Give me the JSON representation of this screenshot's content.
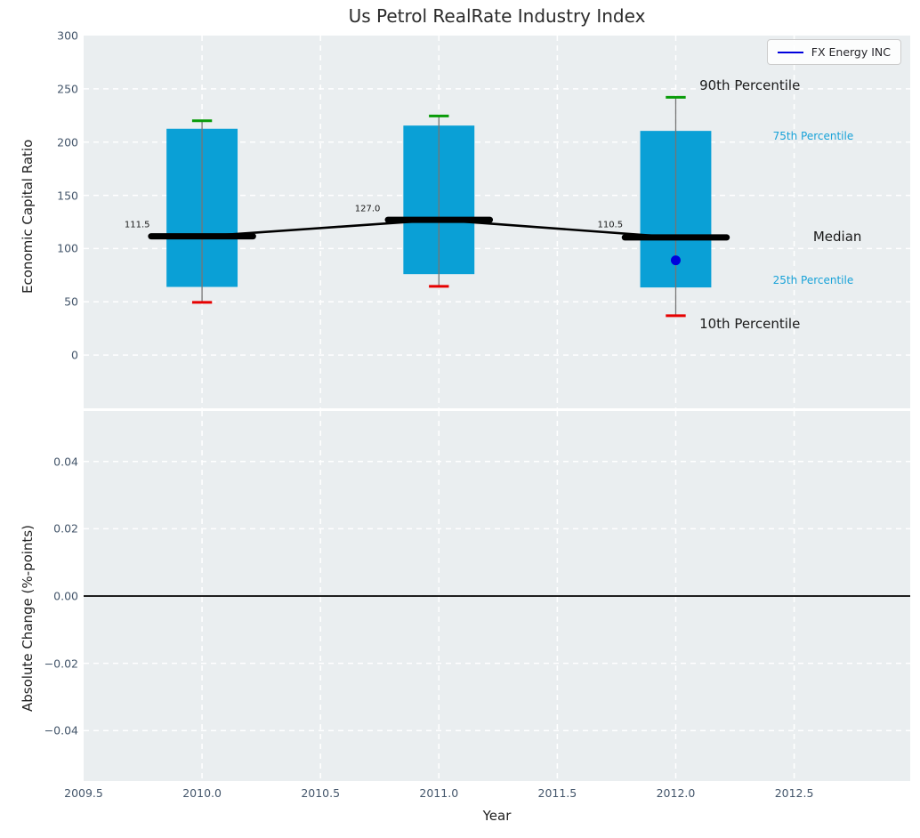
{
  "title": "Us Petrol RealRate Industry Index",
  "legend": {
    "label": "FX Energy INC",
    "line_color": "#0000dd"
  },
  "chart_data": {
    "type": "boxplot",
    "title": "Us Petrol RealRate Industry Index",
    "xlabel": "Year",
    "grid": "on",
    "legend_position": "upper right",
    "xlim": [
      2009.5,
      2012.99
    ],
    "xticks": {
      "values": [
        2009.5,
        2010.0,
        2010.5,
        2011.0,
        2011.5,
        2012.0,
        2012.5
      ],
      "labels": [
        "2009.5",
        "2010.0",
        "2010.5",
        "2011.0",
        "2011.5",
        "2012.0",
        "2012.5"
      ]
    },
    "top_panel": {
      "ylabel": "Economic Capital Ratio",
      "ylim": [
        -50,
        300
      ],
      "ytick_values": [
        300,
        250,
        200,
        150,
        100,
        50,
        0
      ],
      "ytick_labels": [
        "300",
        "250",
        "200",
        "150",
        "100",
        "50",
        "0"
      ],
      "grid_values": [
        250,
        200,
        150,
        100,
        50,
        0
      ],
      "boxes": [
        {
          "year": 2010,
          "p10": 49.5,
          "q25": 64,
          "median": 111.5,
          "q75": 212.5,
          "p90": 220
        },
        {
          "year": 2011,
          "p10": 64.5,
          "q25": 76,
          "median": 127.0,
          "q75": 215.5,
          "p90": 224.5
        },
        {
          "year": 2012,
          "p10": 37,
          "q25": 63.5,
          "median": 110.5,
          "q75": 210.5,
          "p90": 242
        }
      ],
      "box_width_years": 0.3,
      "median_segment_halfwidth_years": 0.215,
      "cap_halfwidth_years": 0.042,
      "marker_point": {
        "x": 2012,
        "y": 89
      },
      "annotations": [
        {
          "text": "111.5",
          "x": 2009.78,
          "y": 122,
          "size": 10,
          "color": "#1a1a1a",
          "align": "right"
        },
        {
          "text": "127.0",
          "x": 2010.645,
          "y": 137,
          "size": 10,
          "color": "#1a1a1a",
          "align": "left"
        },
        {
          "text": "110.5",
          "x": 2011.777,
          "y": 122,
          "size": 10,
          "color": "#1a1a1a",
          "align": "right"
        },
        {
          "text": "90th Percentile",
          "x": 2012.1,
          "y": 253,
          "size": 15,
          "color": "#1a1a1a",
          "align": "left"
        },
        {
          "text": "75th Percentile",
          "x": 2012.41,
          "y": 205.5,
          "size": 12,
          "color": "#18a2d8",
          "align": "left"
        },
        {
          "text": "Median",
          "x": 2012.58,
          "y": 111,
          "size": 15,
          "color": "#1a1a1a",
          "align": "left"
        },
        {
          "text": "25th Percentile",
          "x": 2012.41,
          "y": 70,
          "size": 12,
          "color": "#18a2d8",
          "align": "left"
        },
        {
          "text": "10th Percentile",
          "x": 2012.1,
          "y": 29,
          "size": 15,
          "color": "#1a1a1a",
          "align": "left"
        }
      ]
    },
    "bottom_panel": {
      "ylabel": "Absolute Change (%-points)",
      "ylim": [
        -0.055,
        0.055
      ],
      "ytick_values": [
        0.04,
        0.02,
        0.0,
        -0.02,
        -0.04
      ],
      "ytick_labels": [
        "0.04",
        "0.02",
        "0.00",
        "−0.02",
        "−0.04"
      ],
      "grid_values": [
        0.04,
        0.02,
        0.0,
        -0.02,
        -0.04
      ],
      "zero_line": 0.0,
      "series": [
        {
          "name": "FX Energy INC",
          "x": [],
          "y": []
        }
      ]
    },
    "colors": {
      "box_fill": "#0aa0d6",
      "median_line": "#000000",
      "whisker": "#757575",
      "cap_top": "#089b08",
      "cap_bottom": "#e60000",
      "marker": "#0000dd",
      "percentile_label": "#18a2d8",
      "grid": "#ffffff",
      "axes_bg": "#eaeef0",
      "tick_label": "#44566b"
    }
  }
}
